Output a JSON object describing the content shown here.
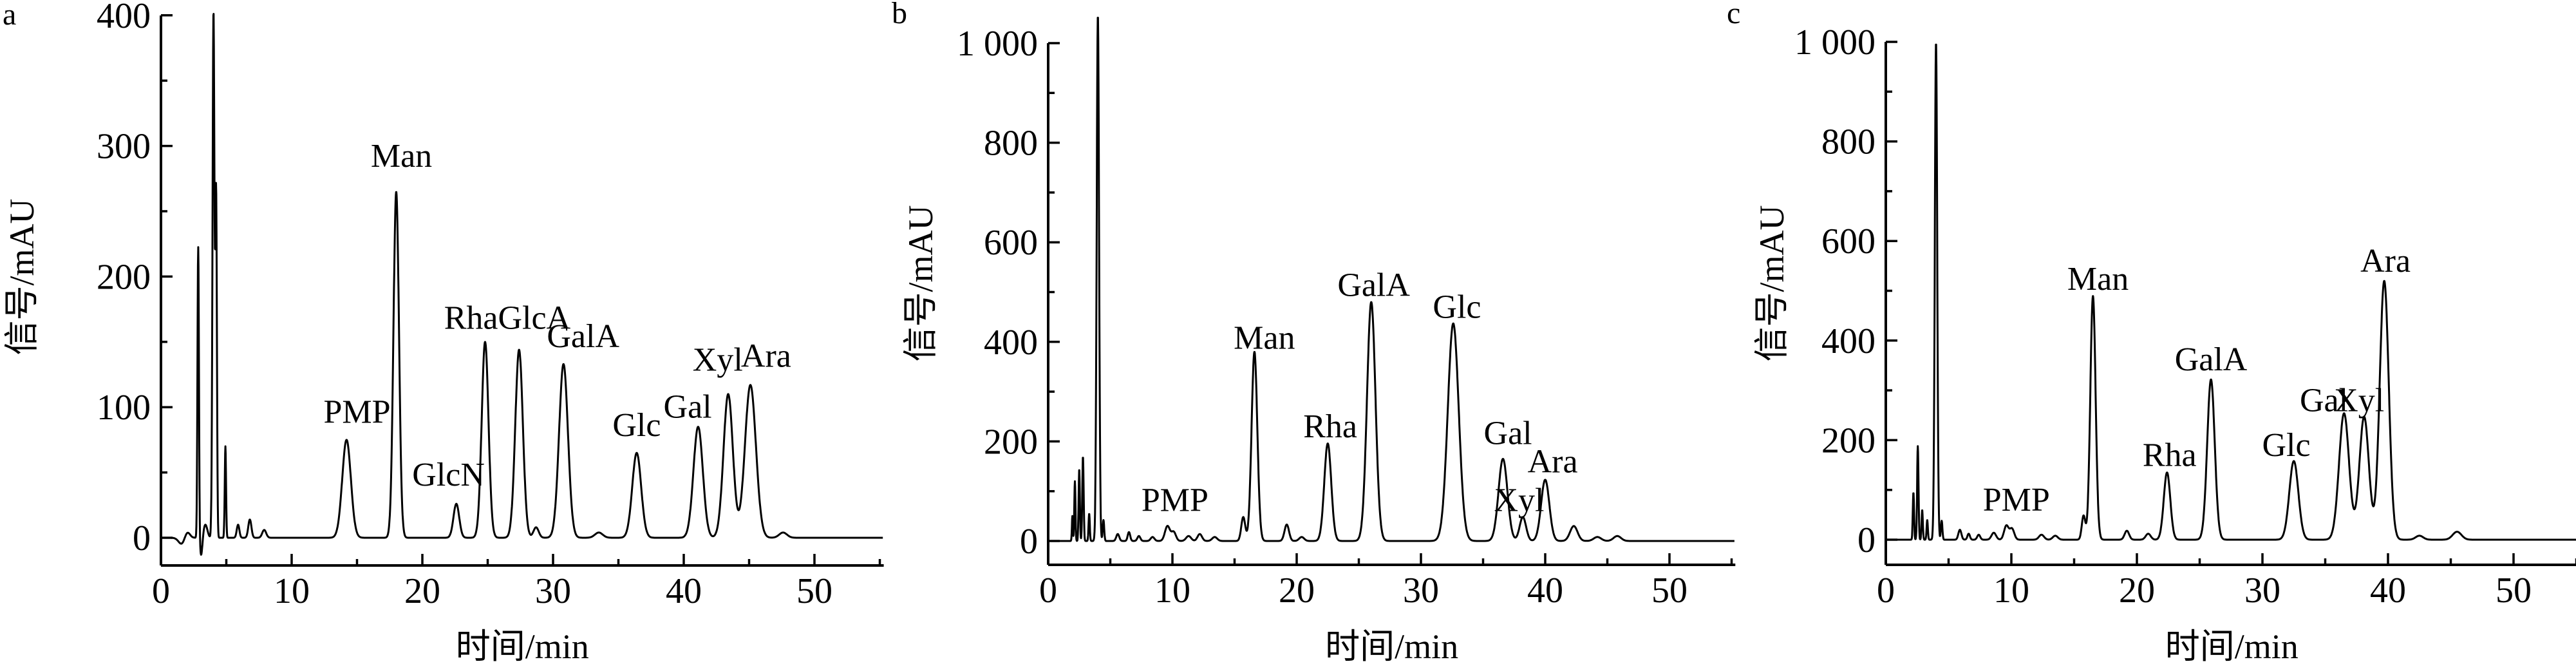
{
  "figure": {
    "background_color": "#ffffff",
    "line_color": "#000000",
    "text_color": "#000000",
    "description_visible_text_only": true
  },
  "chart_data": [
    {
      "type": "line",
      "panel_label": "a",
      "xlabel": "时间/min",
      "ylabel": "信号/mAU",
      "xlim": [
        0,
        55.3
      ],
      "ylim": [
        0,
        400
      ],
      "grid": false,
      "legend": null,
      "x_major_ticks": [
        0,
        10,
        20,
        30,
        40,
        50
      ],
      "x_tick_labels": [
        "0",
        "10",
        "20",
        "30",
        "40",
        "50"
      ],
      "x_minor_ticks": [
        5,
        15,
        25,
        35,
        45,
        55
      ],
      "y_major_ticks": [
        0,
        100,
        200,
        300,
        400
      ],
      "y_tick_labels": [
        "0",
        "100",
        "200",
        "300",
        "400"
      ],
      "y_minor_ticks": [
        50,
        150,
        250,
        350
      ],
      "peaks_t_h_w": [
        [
          2.0,
          5,
          0.2
        ],
        [
          2.85,
          223,
          0.055
        ],
        [
          3.4,
          10,
          0.15
        ],
        [
          4.02,
          403,
          0.075
        ],
        [
          4.22,
          259,
          0.06
        ],
        [
          4.93,
          70,
          0.05
        ],
        [
          5.9,
          10,
          0.1
        ],
        [
          6.8,
          14,
          0.12
        ],
        [
          7.9,
          6,
          0.15
        ],
        [
          14.2,
          75,
          0.33
        ],
        [
          18.0,
          265,
          0.21
        ],
        [
          22.6,
          26,
          0.22
        ],
        [
          24.8,
          150,
          0.26
        ],
        [
          27.4,
          144,
          0.29
        ],
        [
          28.7,
          8,
          0.2
        ],
        [
          30.8,
          133,
          0.34
        ],
        [
          33.5,
          4,
          0.3
        ],
        [
          36.4,
          65,
          0.34
        ],
        [
          41.1,
          85,
          0.36
        ],
        [
          43.4,
          110,
          0.36
        ],
        [
          45.1,
          117,
          0.42
        ],
        [
          47.6,
          4,
          0.3
        ]
      ],
      "dips_t_h_w": [
        [
          1.6,
          -5,
          0.25
        ],
        [
          3.08,
          -14,
          0.09
        ]
      ],
      "peak_labels": [
        {
          "text": "PMP",
          "t": 15.0,
          "y": 88
        },
        {
          "text": "Man",
          "t": 18.4,
          "y": 284
        },
        {
          "text": "GlcN",
          "t": 22.0,
          "y": 40
        },
        {
          "text": "RhaGlcA",
          "t": 26.5,
          "y": 160
        },
        {
          "text": "GalA",
          "t": 32.3,
          "y": 146
        },
        {
          "text": "Glc",
          "t": 36.4,
          "y": 78
        },
        {
          "text": "Gal",
          "t": 40.3,
          "y": 92
        },
        {
          "text": "Xyl",
          "t": 42.6,
          "y": 128
        },
        {
          "text": "Ara",
          "t": 46.3,
          "y": 131
        }
      ]
    },
    {
      "type": "line",
      "panel_label": "b",
      "xlabel": "时间/min",
      "ylabel": "信号/mAU",
      "xlim": [
        0,
        55.3
      ],
      "ylim": [
        0,
        1000
      ],
      "grid": false,
      "legend": null,
      "x_major_ticks": [
        0,
        10,
        20,
        30,
        40,
        50
      ],
      "x_tick_labels": [
        "0",
        "10",
        "20",
        "30",
        "40",
        "50"
      ],
      "x_minor_ticks": [
        5,
        15,
        25,
        35,
        45,
        55
      ],
      "y_major_ticks": [
        0,
        200,
        400,
        600,
        800,
        1000
      ],
      "y_tick_labels": [
        "0",
        "200",
        "400",
        "600",
        "800",
        "1 000"
      ],
      "y_minor_ticks": [
        100,
        300,
        500,
        700,
        900
      ],
      "peaks_t_h_w": [
        [
          1.95,
          50,
          0.04
        ],
        [
          2.15,
          120,
          0.045
        ],
        [
          2.5,
          145,
          0.05
        ],
        [
          2.8,
          170,
          0.055
        ],
        [
          3.3,
          55,
          0.05
        ],
        [
          4.0,
          1057,
          0.095
        ],
        [
          4.45,
          42,
          0.06
        ],
        [
          5.6,
          14,
          0.12
        ],
        [
          6.5,
          18,
          0.1
        ],
        [
          7.3,
          10,
          0.12
        ],
        [
          8.4,
          8,
          0.15
        ],
        [
          9.6,
          30,
          0.2
        ],
        [
          10.1,
          18,
          0.18
        ],
        [
          11.3,
          10,
          0.2
        ],
        [
          12.2,
          14,
          0.18
        ],
        [
          13.4,
          8,
          0.2
        ],
        [
          15.7,
          48,
          0.16
        ],
        [
          16.6,
          380,
          0.23
        ],
        [
          19.2,
          33,
          0.18
        ],
        [
          20.4,
          8,
          0.2
        ],
        [
          22.5,
          196,
          0.28
        ],
        [
          26.0,
          480,
          0.34
        ],
        [
          32.6,
          437,
          0.44
        ],
        [
          36.6,
          165,
          0.36
        ],
        [
          38.2,
          48,
          0.26
        ],
        [
          40.0,
          123,
          0.33
        ],
        [
          42.3,
          30,
          0.3
        ],
        [
          44.2,
          8,
          0.3
        ],
        [
          45.8,
          10,
          0.3
        ]
      ],
      "dips_t_h_w": [],
      "peak_labels": [
        {
          "text": "PMP",
          "t": 10.2,
          "y": 60
        },
        {
          "text": "Man",
          "t": 17.4,
          "y": 386
        },
        {
          "text": "Rha",
          "t": 22.7,
          "y": 208
        },
        {
          "text": "GalA",
          "t": 26.2,
          "y": 492
        },
        {
          "text": "Glc",
          "t": 32.9,
          "y": 448
        },
        {
          "text": "Gal",
          "t": 37.0,
          "y": 195
        },
        {
          "text": "Xyl",
          "t": 37.9,
          "y": 60
        },
        {
          "text": "Ara",
          "t": 40.6,
          "y": 138
        }
      ]
    },
    {
      "type": "line",
      "panel_label": "c",
      "xlabel": "时间/min",
      "ylabel": "信号/mAU",
      "xlim": [
        0,
        55.1
      ],
      "ylim": [
        0,
        1000
      ],
      "grid": false,
      "legend": null,
      "x_major_ticks": [
        0,
        10,
        20,
        30,
        40,
        50
      ],
      "x_tick_labels": [
        "0",
        "10",
        "20",
        "30",
        "40",
        "50"
      ],
      "x_minor_ticks": [
        5,
        15,
        25,
        35,
        45,
        55
      ],
      "y_major_ticks": [
        0,
        200,
        400,
        600,
        800,
        1000
      ],
      "y_tick_labels": [
        "0",
        "200",
        "400",
        "600",
        "800",
        "1 000"
      ],
      "y_minor_ticks": [
        100,
        300,
        500,
        700,
        900
      ],
      "peaks_t_h_w": [
        [
          2.2,
          95,
          0.05
        ],
        [
          2.55,
          188,
          0.055
        ],
        [
          2.9,
          60,
          0.05
        ],
        [
          3.3,
          40,
          0.05
        ],
        [
          4.0,
          1000,
          0.095
        ],
        [
          4.45,
          38,
          0.06
        ],
        [
          5.9,
          20,
          0.12
        ],
        [
          6.6,
          12,
          0.1
        ],
        [
          7.4,
          10,
          0.12
        ],
        [
          8.6,
          14,
          0.18
        ],
        [
          9.6,
          28,
          0.18
        ],
        [
          10.05,
          22,
          0.18
        ],
        [
          12.4,
          10,
          0.2
        ],
        [
          13.5,
          8,
          0.2
        ],
        [
          15.75,
          48,
          0.14
        ],
        [
          16.5,
          490,
          0.21
        ],
        [
          19.2,
          18,
          0.18
        ],
        [
          20.9,
          12,
          0.2
        ],
        [
          22.4,
          135,
          0.26
        ],
        [
          25.9,
          322,
          0.3
        ],
        [
          32.5,
          158,
          0.36
        ],
        [
          36.5,
          254,
          0.4
        ],
        [
          38.1,
          247,
          0.38
        ],
        [
          39.7,
          520,
          0.36
        ],
        [
          42.5,
          8,
          0.3
        ],
        [
          45.5,
          16,
          0.35
        ]
      ],
      "dips_t_h_w": [],
      "peak_labels": [
        {
          "text": "PMP",
          "t": 10.4,
          "y": 58
        },
        {
          "text": "Man",
          "t": 16.9,
          "y": 502
        },
        {
          "text": "Rha",
          "t": 22.6,
          "y": 148
        },
        {
          "text": "GalA",
          "t": 25.9,
          "y": 340
        },
        {
          "text": "Glc",
          "t": 31.9,
          "y": 168
        },
        {
          "text": "Gal",
          "t": 34.9,
          "y": 258
        },
        {
          "text": "Xyl",
          "t": 37.7,
          "y": 258
        },
        {
          "text": "Ara",
          "t": 39.8,
          "y": 538
        }
      ]
    }
  ]
}
